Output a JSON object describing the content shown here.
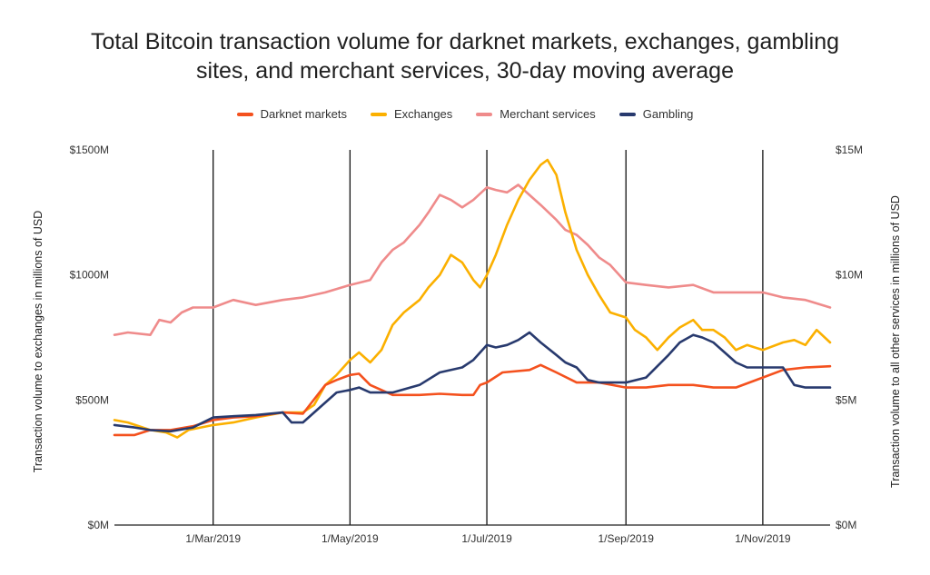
{
  "chart_data": {
    "type": "line",
    "title_lines": [
      "Total Bitcoin transaction volume for darknet markets, exchanges, gambling",
      "sites, and merchant services, 30-day moving average"
    ],
    "ylabel_left": "Transaction  volume to exchanges in millions of USD",
    "ylabel_right": "Transaction volume to all other services in millions of USD",
    "y_left": {
      "range": [
        0,
        1500
      ],
      "ticks": [
        0,
        500,
        1000,
        1500
      ],
      "tick_labels": [
        "$0M",
        "$500M",
        "$1000M",
        "$1500M"
      ]
    },
    "y_right": {
      "range": [
        0,
        15
      ],
      "ticks": [
        0,
        5,
        10,
        15
      ],
      "tick_labels": [
        "$0M",
        "$5M",
        "$10M",
        "$15M"
      ]
    },
    "x_range": [
      "2019-01-16",
      "2019-12-01"
    ],
    "x_ticks": [
      "2019-03-01",
      "2019-05-01",
      "2019-07-01",
      "2019-09-01",
      "2019-11-01"
    ],
    "x_tick_labels": [
      "1/Mar/2019",
      "1/May/2019",
      "1/Jul/2019",
      "1/Sep/2019",
      "1/Nov/2019"
    ],
    "vertical_gridlines": true,
    "legend_position": "top-center",
    "series": [
      {
        "name": "Darknet markets",
        "axis": "right",
        "color": "#f4511e",
        "points": [
          [
            "2019-01-16",
            3.6
          ],
          [
            "2019-01-25",
            3.6
          ],
          [
            "2019-02-01",
            3.8
          ],
          [
            "2019-02-10",
            3.8
          ],
          [
            "2019-02-20",
            3.95
          ],
          [
            "2019-03-01",
            4.2
          ],
          [
            "2019-03-10",
            4.3
          ],
          [
            "2019-03-20",
            4.35
          ],
          [
            "2019-04-01",
            4.5
          ],
          [
            "2019-04-10",
            4.45
          ],
          [
            "2019-04-20",
            5.6
          ],
          [
            "2019-04-25",
            5.8
          ],
          [
            "2019-05-01",
            6.0
          ],
          [
            "2019-05-05",
            6.05
          ],
          [
            "2019-05-10",
            5.6
          ],
          [
            "2019-05-20",
            5.2
          ],
          [
            "2019-06-01",
            5.2
          ],
          [
            "2019-06-10",
            5.25
          ],
          [
            "2019-06-20",
            5.2
          ],
          [
            "2019-06-25",
            5.2
          ],
          [
            "2019-06-28",
            5.6
          ],
          [
            "2019-07-01",
            5.7
          ],
          [
            "2019-07-08",
            6.1
          ],
          [
            "2019-07-20",
            6.2
          ],
          [
            "2019-07-25",
            6.4
          ],
          [
            "2019-08-01",
            6.1
          ],
          [
            "2019-08-10",
            5.7
          ],
          [
            "2019-08-20",
            5.7
          ],
          [
            "2019-09-01",
            5.5
          ],
          [
            "2019-09-10",
            5.5
          ],
          [
            "2019-09-20",
            5.6
          ],
          [
            "2019-10-01",
            5.6
          ],
          [
            "2019-10-10",
            5.5
          ],
          [
            "2019-10-20",
            5.5
          ],
          [
            "2019-11-01",
            5.9
          ],
          [
            "2019-11-10",
            6.2
          ],
          [
            "2019-11-20",
            6.3
          ],
          [
            "2019-12-01",
            6.35
          ]
        ]
      },
      {
        "name": "Exchanges",
        "axis": "left",
        "color": "#fbb000",
        "points": [
          [
            "2019-01-16",
            420
          ],
          [
            "2019-01-22",
            410
          ],
          [
            "2019-02-01",
            380
          ],
          [
            "2019-02-08",
            370
          ],
          [
            "2019-02-13",
            350
          ],
          [
            "2019-02-18",
            380
          ],
          [
            "2019-03-01",
            400
          ],
          [
            "2019-03-10",
            410
          ],
          [
            "2019-03-20",
            430
          ],
          [
            "2019-04-01",
            450
          ],
          [
            "2019-04-10",
            450
          ],
          [
            "2019-04-15",
            480
          ],
          [
            "2019-04-20",
            560
          ],
          [
            "2019-04-25",
            600
          ],
          [
            "2019-05-01",
            660
          ],
          [
            "2019-05-05",
            690
          ],
          [
            "2019-05-10",
            650
          ],
          [
            "2019-05-15",
            700
          ],
          [
            "2019-05-20",
            800
          ],
          [
            "2019-05-25",
            850
          ],
          [
            "2019-06-01",
            900
          ],
          [
            "2019-06-05",
            950
          ],
          [
            "2019-06-10",
            1000
          ],
          [
            "2019-06-15",
            1080
          ],
          [
            "2019-06-20",
            1050
          ],
          [
            "2019-06-25",
            980
          ],
          [
            "2019-06-28",
            950
          ],
          [
            "2019-07-01",
            1000
          ],
          [
            "2019-07-05",
            1080
          ],
          [
            "2019-07-10",
            1200
          ],
          [
            "2019-07-15",
            1300
          ],
          [
            "2019-07-20",
            1380
          ],
          [
            "2019-07-25",
            1440
          ],
          [
            "2019-07-28",
            1460
          ],
          [
            "2019-08-01",
            1400
          ],
          [
            "2019-08-05",
            1250
          ],
          [
            "2019-08-10",
            1100
          ],
          [
            "2019-08-15",
            1000
          ],
          [
            "2019-08-20",
            920
          ],
          [
            "2019-08-25",
            850
          ],
          [
            "2019-09-01",
            830
          ],
          [
            "2019-09-05",
            780
          ],
          [
            "2019-09-10",
            750
          ],
          [
            "2019-09-15",
            700
          ],
          [
            "2019-09-20",
            750
          ],
          [
            "2019-09-25",
            790
          ],
          [
            "2019-10-01",
            820
          ],
          [
            "2019-10-05",
            780
          ],
          [
            "2019-10-10",
            780
          ],
          [
            "2019-10-15",
            750
          ],
          [
            "2019-10-20",
            700
          ],
          [
            "2019-10-25",
            720
          ],
          [
            "2019-11-01",
            700
          ],
          [
            "2019-11-10",
            730
          ],
          [
            "2019-11-15",
            740
          ],
          [
            "2019-11-20",
            720
          ],
          [
            "2019-11-25",
            780
          ],
          [
            "2019-12-01",
            730
          ]
        ]
      },
      {
        "name": "Merchant services",
        "axis": "right",
        "color": "#ef8b8b",
        "points": [
          [
            "2019-01-16",
            7.6
          ],
          [
            "2019-01-22",
            7.7
          ],
          [
            "2019-02-01",
            7.6
          ],
          [
            "2019-02-05",
            8.2
          ],
          [
            "2019-02-10",
            8.1
          ],
          [
            "2019-02-15",
            8.5
          ],
          [
            "2019-02-20",
            8.7
          ],
          [
            "2019-03-01",
            8.7
          ],
          [
            "2019-03-10",
            9.0
          ],
          [
            "2019-03-20",
            8.8
          ],
          [
            "2019-04-01",
            9.0
          ],
          [
            "2019-04-10",
            9.1
          ],
          [
            "2019-04-20",
            9.3
          ],
          [
            "2019-05-01",
            9.6
          ],
          [
            "2019-05-10",
            9.8
          ],
          [
            "2019-05-15",
            10.5
          ],
          [
            "2019-05-20",
            11.0
          ],
          [
            "2019-05-25",
            11.3
          ],
          [
            "2019-06-01",
            12.0
          ],
          [
            "2019-06-05",
            12.5
          ],
          [
            "2019-06-10",
            13.2
          ],
          [
            "2019-06-15",
            13.0
          ],
          [
            "2019-06-20",
            12.7
          ],
          [
            "2019-06-25",
            13.0
          ],
          [
            "2019-07-01",
            13.5
          ],
          [
            "2019-07-05",
            13.4
          ],
          [
            "2019-07-10",
            13.3
          ],
          [
            "2019-07-15",
            13.6
          ],
          [
            "2019-07-20",
            13.2
          ],
          [
            "2019-07-25",
            12.8
          ],
          [
            "2019-08-01",
            12.2
          ],
          [
            "2019-08-05",
            11.8
          ],
          [
            "2019-08-10",
            11.6
          ],
          [
            "2019-08-15",
            11.2
          ],
          [
            "2019-08-20",
            10.7
          ],
          [
            "2019-08-25",
            10.4
          ],
          [
            "2019-09-01",
            9.7
          ],
          [
            "2019-09-10",
            9.6
          ],
          [
            "2019-09-20",
            9.5
          ],
          [
            "2019-10-01",
            9.6
          ],
          [
            "2019-10-10",
            9.3
          ],
          [
            "2019-10-20",
            9.3
          ],
          [
            "2019-11-01",
            9.3
          ],
          [
            "2019-11-10",
            9.1
          ],
          [
            "2019-11-20",
            9.0
          ],
          [
            "2019-12-01",
            8.7
          ]
        ]
      },
      {
        "name": "Gambling",
        "axis": "right",
        "color": "#283a6e",
        "points": [
          [
            "2019-01-16",
            4.0
          ],
          [
            "2019-01-25",
            3.9
          ],
          [
            "2019-02-01",
            3.8
          ],
          [
            "2019-02-10",
            3.75
          ],
          [
            "2019-02-20",
            3.9
          ],
          [
            "2019-03-01",
            4.3
          ],
          [
            "2019-03-10",
            4.35
          ],
          [
            "2019-03-20",
            4.4
          ],
          [
            "2019-04-01",
            4.5
          ],
          [
            "2019-04-05",
            4.1
          ],
          [
            "2019-04-10",
            4.1
          ],
          [
            "2019-04-20",
            4.9
          ],
          [
            "2019-04-25",
            5.3
          ],
          [
            "2019-05-01",
            5.4
          ],
          [
            "2019-05-05",
            5.5
          ],
          [
            "2019-05-10",
            5.3
          ],
          [
            "2019-05-20",
            5.3
          ],
          [
            "2019-06-01",
            5.6
          ],
          [
            "2019-06-10",
            6.1
          ],
          [
            "2019-06-20",
            6.3
          ],
          [
            "2019-06-25",
            6.6
          ],
          [
            "2019-07-01",
            7.2
          ],
          [
            "2019-07-05",
            7.1
          ],
          [
            "2019-07-10",
            7.2
          ],
          [
            "2019-07-15",
            7.4
          ],
          [
            "2019-07-20",
            7.7
          ],
          [
            "2019-07-25",
            7.3
          ],
          [
            "2019-08-01",
            6.8
          ],
          [
            "2019-08-05",
            6.5
          ],
          [
            "2019-08-10",
            6.3
          ],
          [
            "2019-08-15",
            5.8
          ],
          [
            "2019-08-20",
            5.7
          ],
          [
            "2019-09-01",
            5.7
          ],
          [
            "2019-09-10",
            5.9
          ],
          [
            "2019-09-20",
            6.8
          ],
          [
            "2019-09-25",
            7.3
          ],
          [
            "2019-10-01",
            7.6
          ],
          [
            "2019-10-05",
            7.5
          ],
          [
            "2019-10-10",
            7.3
          ],
          [
            "2019-10-15",
            6.9
          ],
          [
            "2019-10-20",
            6.5
          ],
          [
            "2019-10-25",
            6.3
          ],
          [
            "2019-11-01",
            6.3
          ],
          [
            "2019-11-10",
            6.3
          ],
          [
            "2019-11-15",
            5.6
          ],
          [
            "2019-11-20",
            5.5
          ],
          [
            "2019-12-01",
            5.5
          ]
        ]
      }
    ]
  }
}
